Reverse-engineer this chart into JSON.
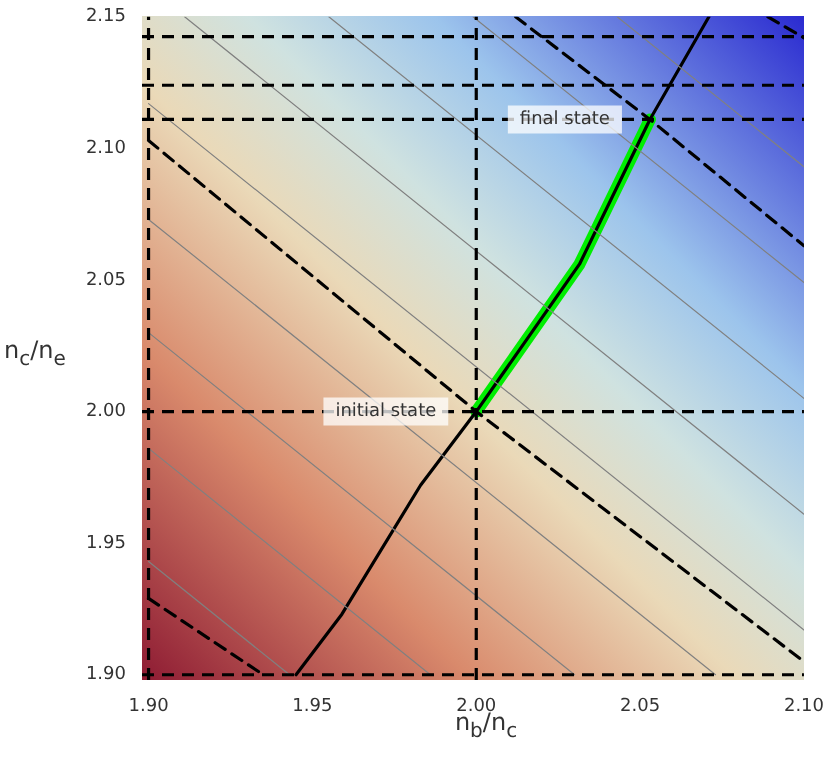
{
  "chart_data": {
    "type": "line",
    "xlabel": "n$_{b}$/n$_{c}$",
    "ylabel": "n$_{c}$/n$_{e}$",
    "xlim": [
      1.898,
      2.1
    ],
    "ylim": [
      1.898,
      2.15
    ],
    "xticks": [
      {
        "value": 1.9,
        "label": "1.90"
      },
      1.95,
      {
        "value": 2.0,
        "label": "2.00"
      },
      2.05,
      {
        "value": 2.1,
        "label": "2.10"
      }
    ],
    "yticks": [
      {
        "value": 1.9,
        "label": "1.90"
      },
      1.95,
      {
        "value": 2.0,
        "label": "2.00"
      },
      2.05,
      {
        "value": 2.1,
        "label": "2.10"
      },
      2.15
    ],
    "grid": false,
    "legend": false,
    "marker": "none",
    "series": [
      {
        "color": "#808080",
        "x": [
          1.9,
          1.943
        ],
        "values": [
          1.943,
          1.9
        ]
      },
      {
        "color": "#808080",
        "x": [
          1.9,
          1.986
        ],
        "values": [
          1.986,
          1.9
        ]
      },
      {
        "color": "#808080",
        "x": [
          1.9,
          2.03
        ],
        "values": [
          2.03,
          1.9
        ]
      },
      {
        "color": "#808080",
        "x": [
          1.9,
          2.073
        ],
        "values": [
          2.073,
          1.9
        ]
      },
      {
        "color": "#808080",
        "x": [
          1.9,
          2.1
        ],
        "values": [
          2.117,
          1.917
        ]
      },
      {
        "color": "#808080",
        "x": [
          1.911,
          2.1
        ],
        "values": [
          2.15,
          1.961
        ]
      },
      {
        "color": "#808080",
        "x": [
          1.955,
          2.1
        ],
        "values": [
          2.15,
          2.005
        ]
      },
      {
        "color": "#808080",
        "x": [
          1.999,
          2.1
        ],
        "values": [
          2.15,
          2.049
        ]
      },
      {
        "color": "#808080",
        "x": [
          2.043,
          2.1
        ],
        "values": [
          2.15,
          2.093
        ]
      },
      {
        "color": "#000000",
        "line_style": "dashed",
        "x": [
          1.9,
          2.0,
          2.1
        ],
        "values": [
          2.103,
          2.0,
          1.905
        ]
      },
      {
        "color": "#000000",
        "line_style": "dashed",
        "x": [
          1.9,
          1.935
        ],
        "values": [
          1.929,
          1.9
        ]
      },
      {
        "color": "#000000",
        "line_style": "dashed",
        "x": [
          2.012,
          2.053,
          2.1
        ],
        "values": [
          2.15,
          2.111,
          2.063
        ]
      },
      {
        "color": "#000000",
        "line_style": "dashed",
        "x": [
          2.089,
          2.1
        ],
        "values": [
          2.15,
          2.142
        ]
      },
      {
        "color": "#000000",
        "line_style": "solid",
        "x": [
          1.945,
          1.959,
          1.983,
          2.0,
          2.0315,
          2.053,
          2.071
        ],
        "values": [
          1.9,
          1.923,
          1.972,
          2.0,
          2.056,
          2.111,
          2.15
        ]
      },
      {
        "color": "#00ee00",
        "line_style": "solid",
        "x": [
          2.0,
          2.0315,
          2.053
        ],
        "values": [
          2.0,
          2.056,
          2.111
        ]
      }
    ],
    "ref_lines": [
      {
        "axis": "x",
        "value": 1.9,
        "color": "#000000",
        "line_style": "dashed"
      },
      {
        "axis": "x",
        "value": 2.0,
        "color": "#000000",
        "line_style": "dashed"
      },
      {
        "axis": "y",
        "value": 1.9,
        "color": "#000000",
        "line_style": "dashed"
      },
      {
        "axis": "y",
        "value": 2.0,
        "color": "#000000",
        "line_style": "dashed"
      },
      {
        "axis": "y",
        "value": 2.111,
        "color": "#000000",
        "line_style": "dashed"
      },
      {
        "axis": "y",
        "value": 2.124,
        "color": "#000000",
        "line_style": "dashed"
      },
      {
        "axis": "y",
        "value": 2.1425,
        "color": "#000000",
        "line_style": "dashed"
      }
    ],
    "annotations": [
      {
        "text": "initial state",
        "x": 2.0,
        "y": 2.0
      },
      {
        "text": "final state",
        "x": 2.053,
        "y": 2.111
      }
    ]
  }
}
